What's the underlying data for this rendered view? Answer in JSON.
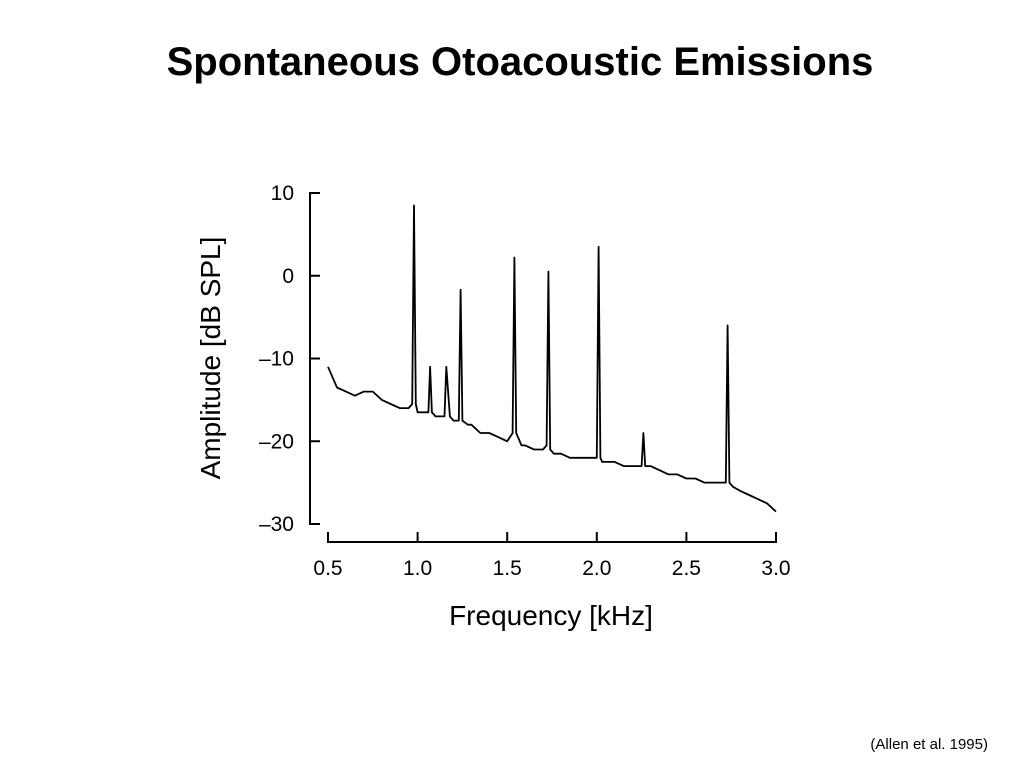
{
  "slide": {
    "title": "Spontaneous Otoacoustic Emissions",
    "citation": "(Allen et al. 1995)"
  },
  "chart_data": {
    "type": "line",
    "title": "",
    "xlabel": "Frequency [kHz]",
    "ylabel": "Amplitude [dB SPL]",
    "xlim": [
      0.5,
      3.0
    ],
    "ylim": [
      -30,
      10
    ],
    "x_ticks": [
      0.5,
      1.0,
      1.5,
      2.0,
      2.5,
      3.0
    ],
    "x_tick_labels": [
      "0.5",
      "1.0",
      "1.5",
      "2.0",
      "2.5",
      "3.0"
    ],
    "y_ticks": [
      10,
      0,
      -10,
      -20,
      -30
    ],
    "y_tick_labels": [
      "10",
      "0",
      "–10",
      "–20",
      "–30"
    ],
    "grid": false,
    "legend": "none",
    "line_color": "#000000",
    "series": [
      {
        "x": [
          0.5,
          0.55,
          0.6,
          0.65,
          0.7,
          0.75,
          0.8,
          0.85,
          0.9,
          0.95,
          0.97,
          0.98,
          0.99,
          1.0,
          1.03,
          1.06,
          1.07,
          1.08,
          1.1,
          1.13,
          1.15,
          1.16,
          1.18,
          1.2,
          1.23,
          1.24,
          1.25,
          1.28,
          1.3,
          1.35,
          1.4,
          1.45,
          1.5,
          1.53,
          1.54,
          1.55,
          1.58,
          1.6,
          1.65,
          1.7,
          1.72,
          1.73,
          1.74,
          1.76,
          1.8,
          1.85,
          1.9,
          1.95,
          2.0,
          2.01,
          2.02,
          2.03,
          2.06,
          2.1,
          2.15,
          2.2,
          2.25,
          2.26,
          2.27,
          2.3,
          2.35,
          2.4,
          2.45,
          2.5,
          2.55,
          2.6,
          2.65,
          2.7,
          2.72,
          2.73,
          2.74,
          2.76,
          2.8,
          2.85,
          2.9,
          2.95,
          3.0
        ],
        "y": [
          -11,
          -13.5,
          -14,
          -14.5,
          -14,
          -14,
          -15,
          -15.5,
          -16,
          -16,
          -15.5,
          8.5,
          -15.5,
          -16.5,
          -16.5,
          -16.5,
          -11,
          -16.5,
          -17,
          -17,
          -17,
          -11,
          -17,
          -17.5,
          -17.5,
          -1.7,
          -17.5,
          -18,
          -18,
          -19,
          -19,
          -19.5,
          -20,
          -19,
          2.2,
          -19,
          -20.5,
          -20.5,
          -21,
          -21,
          -20.5,
          0.5,
          -21,
          -21.5,
          -21.5,
          -22,
          -22,
          -22,
          -22,
          3.5,
          -22,
          -22.5,
          -22.5,
          -22.5,
          -23,
          -23,
          -23,
          -19,
          -23,
          -23,
          -23.5,
          -24,
          -24,
          -24.5,
          -24.5,
          -25,
          -25,
          -25,
          -25,
          -6,
          -25,
          -25.5,
          -26,
          -26.5,
          -27,
          -27.5,
          -28.5
        ]
      }
    ]
  }
}
